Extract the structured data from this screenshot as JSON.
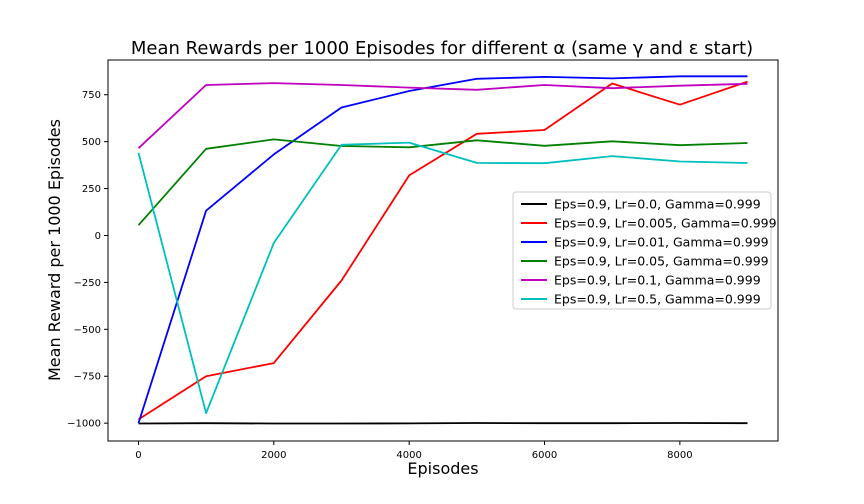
{
  "chart_data": {
    "type": "line",
    "title": "Mean Rewards per 1000 Episodes for different α (same γ and ε start)",
    "xlabel": "Episodes",
    "ylabel": "Mean Reward per 1000 Episodes",
    "xlim": [
      -450,
      9450
    ],
    "ylim": [
      -1095,
      935
    ],
    "xticks": [
      0,
      2000,
      4000,
      6000,
      8000
    ],
    "xtick_labels": [
      "0",
      "2000",
      "4000",
      "6000",
      "8000"
    ],
    "yticks": [
      -1000,
      -750,
      -500,
      -250,
      0,
      250,
      500,
      750
    ],
    "ytick_labels": [
      "−1000",
      "−750",
      "−500",
      "−250",
      "0",
      "250",
      "500",
      "750"
    ],
    "grid": false,
    "legend_position": "center-right",
    "x": [
      0,
      1000,
      2000,
      3000,
      4000,
      5000,
      6000,
      7000,
      8000,
      9000
    ],
    "series": [
      {
        "name": "Eps=0.9, Lr=0.0, Gamma=0.999",
        "color": "#000000",
        "values": [
          -1002,
          -1000,
          -1002,
          -1002,
          -1001,
          -999,
          -1000,
          -1000,
          -999,
          -1000
        ]
      },
      {
        "name": "Eps=0.9, Lr=0.005, Gamma=0.999",
        "color": "#ff0000",
        "values": [
          -980,
          -750,
          -680,
          -240,
          320,
          542,
          562,
          810,
          697,
          820
        ]
      },
      {
        "name": "Eps=0.9, Lr=0.01, Gamma=0.999",
        "color": "#0000ff",
        "values": [
          -1000,
          132,
          432,
          682,
          770,
          835,
          845,
          837,
          848,
          848
        ]
      },
      {
        "name": "Eps=0.9, Lr=0.05, Gamma=0.999",
        "color": "#008000",
        "values": [
          55,
          462,
          512,
          477,
          470,
          507,
          478,
          502,
          481,
          493
        ]
      },
      {
        "name": "Eps=0.9, Lr=0.1, Gamma=0.999",
        "color": "#bf00bf",
        "values": [
          465,
          802,
          812,
          802,
          788,
          776,
          802,
          785,
          798,
          808
        ]
      },
      {
        "name": "Eps=0.9, Lr=0.5, Gamma=0.999",
        "color": "#00bfbf",
        "values": [
          440,
          -947,
          -40,
          483,
          495,
          387,
          385,
          423,
          394,
          386
        ]
      }
    ]
  }
}
